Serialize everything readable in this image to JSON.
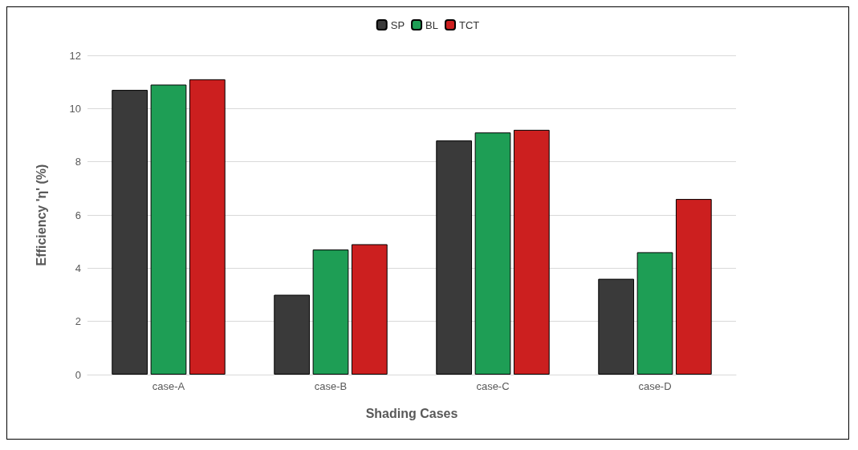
{
  "chart_data": {
    "type": "bar",
    "xlabel": "Shading Cases",
    "ylabel": "Efficiency 'η' (%)",
    "categories": [
      "case-A",
      "case-B",
      "case-C",
      "case-D"
    ],
    "series": [
      {
        "name": "SP",
        "color": "#3a3a3a",
        "values": [
          10.7,
          3.0,
          8.8,
          3.6
        ]
      },
      {
        "name": "BL",
        "color": "#1e9e55",
        "values": [
          10.9,
          4.7,
          9.1,
          4.6
        ]
      },
      {
        "name": "TCT",
        "color": "#cc1f1f",
        "values": [
          11.1,
          4.9,
          9.2,
          6.6
        ]
      }
    ],
    "ylim": [
      0,
      12
    ],
    "yticks": [
      0,
      2,
      4,
      6,
      8,
      10,
      12
    ],
    "grid": "y",
    "legend": "top"
  }
}
